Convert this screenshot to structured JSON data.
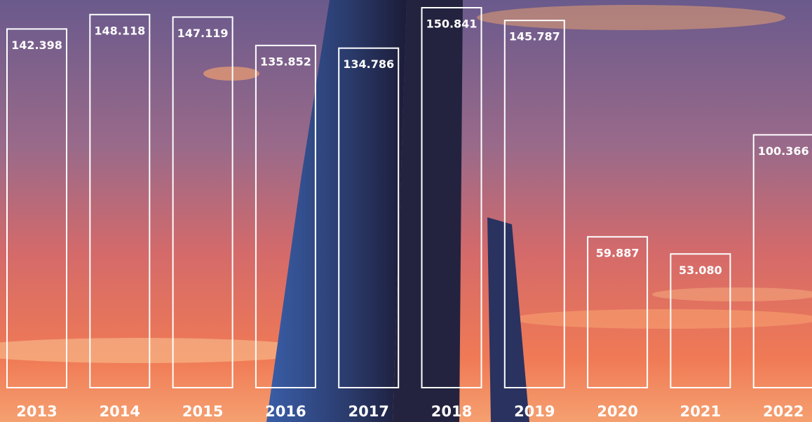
{
  "chart_data": {
    "type": "bar",
    "categories": [
      "2013",
      "2014",
      "2015",
      "2016",
      "2017",
      "2018",
      "2019",
      "2020",
      "2021",
      "2022"
    ],
    "values": [
      142398,
      148118,
      147119,
      135852,
      134786,
      150841,
      145787,
      59887,
      53080,
      100366
    ],
    "value_labels": [
      "142.398",
      "148.118",
      "147.119",
      "135.852",
      "134.786",
      "150.841",
      "145.787",
      "59.887",
      "53.080",
      "100.366"
    ],
    "color": "#ffffff"
  }
}
